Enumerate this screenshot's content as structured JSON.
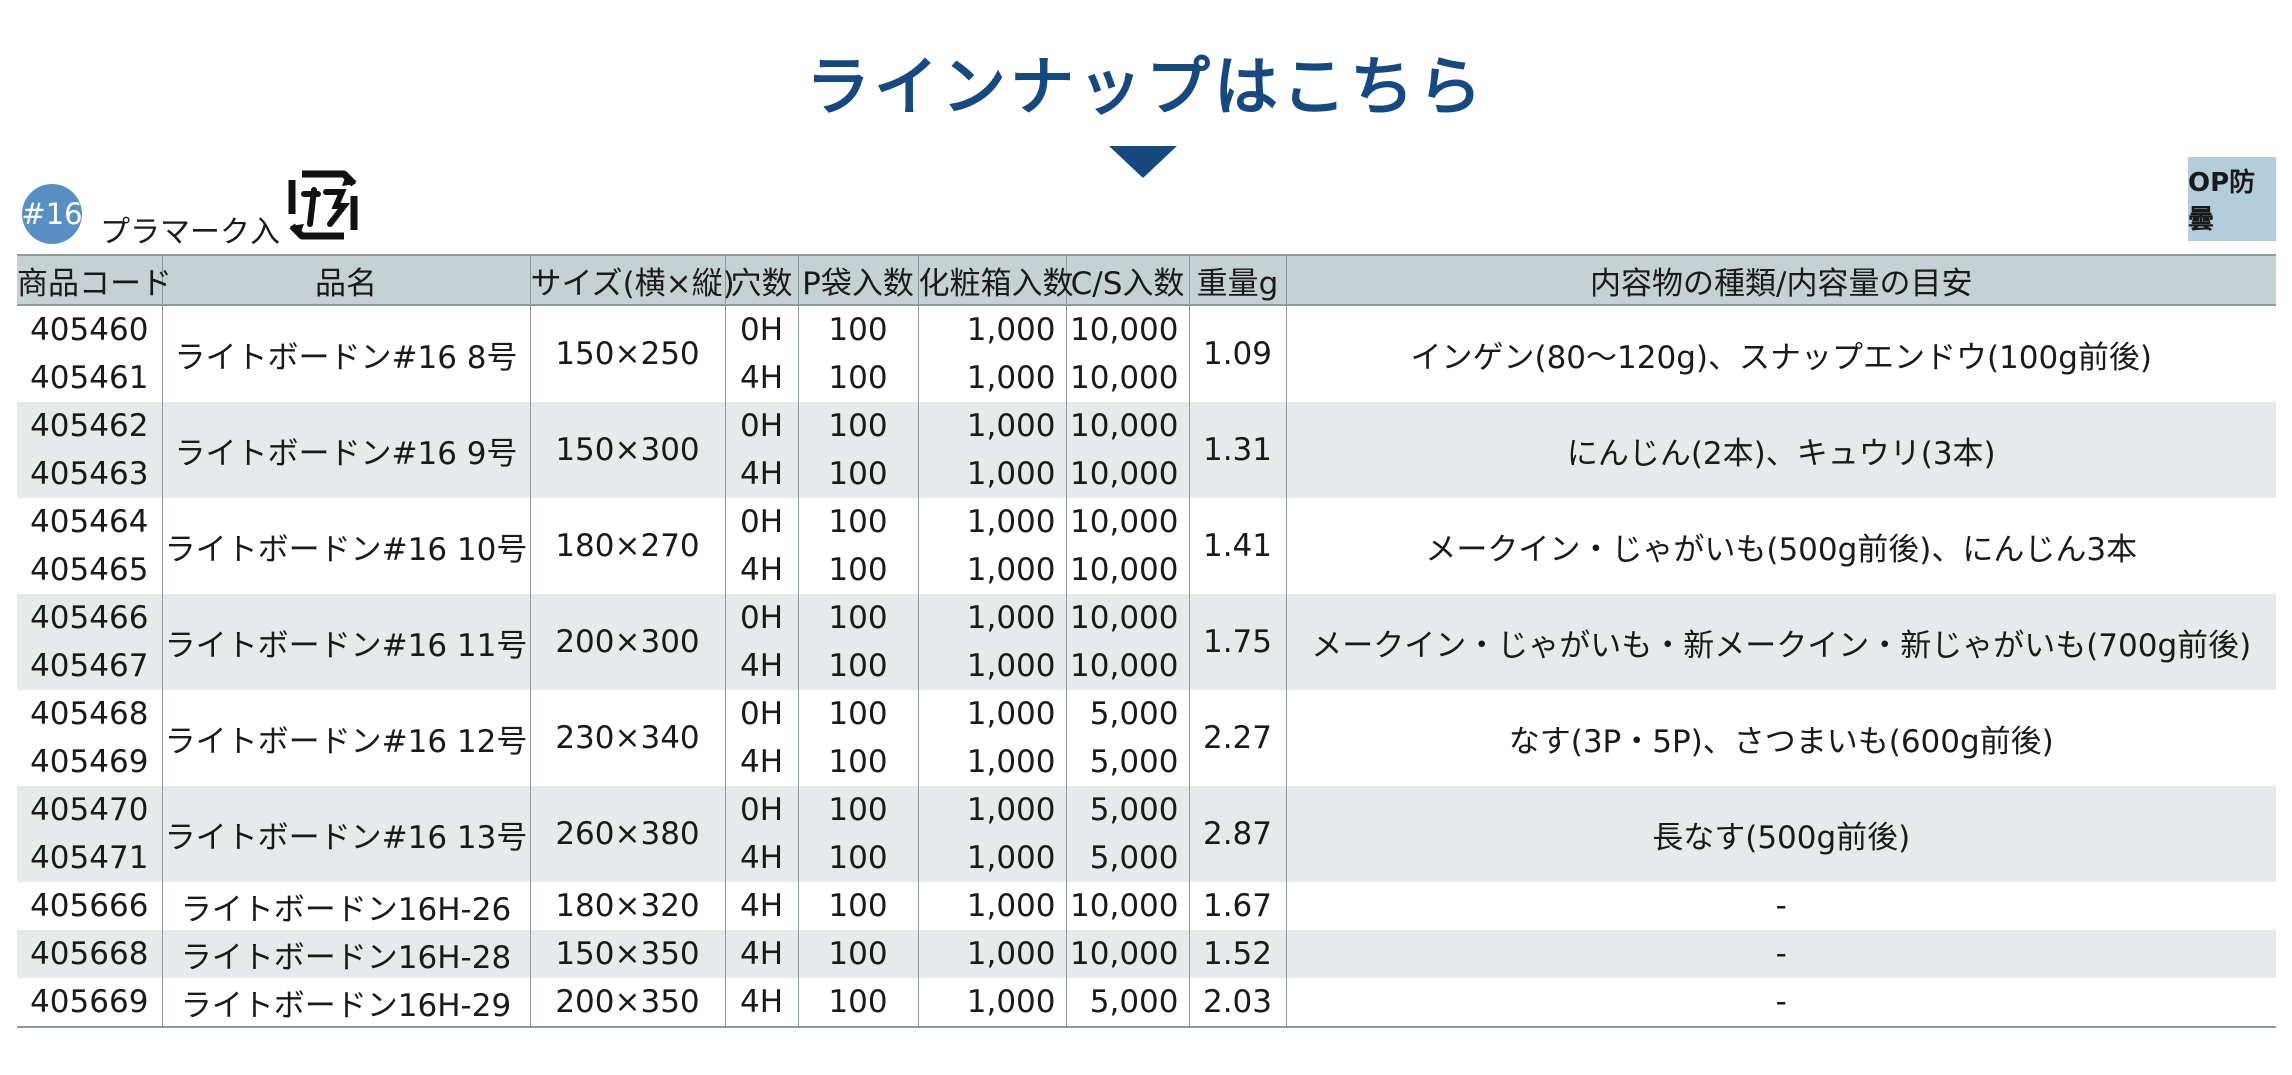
{
  "header": {
    "title": "ラインナップはこちら"
  },
  "series": {
    "badge": "#16",
    "label": "プラマーク入",
    "pla_icon": "pla-recycle-icon"
  },
  "op_badge": "OP防曇",
  "table": {
    "headers": [
      "商品コード",
      "品名",
      "サイズ(横×縦)",
      "穴数",
      "P袋入数",
      "化粧箱入数",
      "C/S入数",
      "重量g",
      "内容物の種類/内容量の目安"
    ],
    "groups": [
      {
        "name": "ライトボードン#16  8号",
        "size": "150×250",
        "weight": "1.09",
        "contents": "インゲン(80～120g)、スナップエンドウ(100g前後)",
        "rows": [
          {
            "code": "405460",
            "holes": "0H",
            "p_bag": "100",
            "box": "1,000",
            "cs": "10,000"
          },
          {
            "code": "405461",
            "holes": "4H",
            "p_bag": "100",
            "box": "1,000",
            "cs": "10,000"
          }
        ]
      },
      {
        "name": "ライトボードン#16  9号",
        "size": "150×300",
        "weight": "1.31",
        "contents": "にんじん(2本)、キュウリ(3本)",
        "rows": [
          {
            "code": "405462",
            "holes": "0H",
            "p_bag": "100",
            "box": "1,000",
            "cs": "10,000"
          },
          {
            "code": "405463",
            "holes": "4H",
            "p_bag": "100",
            "box": "1,000",
            "cs": "10,000"
          }
        ]
      },
      {
        "name": "ライトボードン#16  10号",
        "size": "180×270",
        "weight": "1.41",
        "contents": "メークイン・じゃがいも(500g前後)、にんじん3本",
        "rows": [
          {
            "code": "405464",
            "holes": "0H",
            "p_bag": "100",
            "box": "1,000",
            "cs": "10,000"
          },
          {
            "code": "405465",
            "holes": "4H",
            "p_bag": "100",
            "box": "1,000",
            "cs": "10,000"
          }
        ]
      },
      {
        "name": "ライトボードン#16  11号",
        "size": "200×300",
        "weight": "1.75",
        "contents": "メークイン・じゃがいも・新メークイン・新じゃがいも(700g前後)",
        "rows": [
          {
            "code": "405466",
            "holes": "0H",
            "p_bag": "100",
            "box": "1,000",
            "cs": "10,000"
          },
          {
            "code": "405467",
            "holes": "4H",
            "p_bag": "100",
            "box": "1,000",
            "cs": "10,000"
          }
        ]
      },
      {
        "name": "ライトボードン#16  12号",
        "size": "230×340",
        "weight": "2.27",
        "contents": "なす(3P・5P)、さつまいも(600g前後)",
        "rows": [
          {
            "code": "405468",
            "holes": "0H",
            "p_bag": "100",
            "box": "1,000",
            "cs": "5,000"
          },
          {
            "code": "405469",
            "holes": "4H",
            "p_bag": "100",
            "box": "1,000",
            "cs": "5,000"
          }
        ]
      },
      {
        "name": "ライトボードン#16  13号",
        "size": "260×380",
        "weight": "2.87",
        "contents": "長なす(500g前後)",
        "rows": [
          {
            "code": "405470",
            "holes": "0H",
            "p_bag": "100",
            "box": "1,000",
            "cs": "5,000"
          },
          {
            "code": "405471",
            "holes": "4H",
            "p_bag": "100",
            "box": "1,000",
            "cs": "5,000"
          }
        ]
      },
      {
        "name": "ライトボードン16H-26",
        "size": "180×320",
        "weight": "1.67",
        "contents": "-",
        "rows": [
          {
            "code": "405666",
            "holes": "4H",
            "p_bag": "100",
            "box": "1,000",
            "cs": "10,000"
          }
        ]
      },
      {
        "name": "ライトボードン16H-28",
        "size": "150×350",
        "weight": "1.52",
        "contents": "-",
        "rows": [
          {
            "code": "405668",
            "holes": "4H",
            "p_bag": "100",
            "box": "1,000",
            "cs": "10,000"
          }
        ]
      },
      {
        "name": "ライトボードン16H-29",
        "size": "200×350",
        "weight": "2.03",
        "contents": "-",
        "rows": [
          {
            "code": "405669",
            "holes": "4H",
            "p_bag": "100",
            "box": "1,000",
            "cs": "5,000"
          }
        ]
      }
    ]
  }
}
